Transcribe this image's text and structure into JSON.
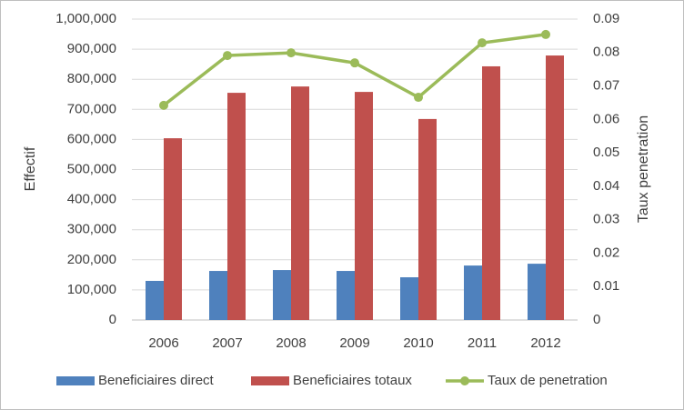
{
  "chart_data": {
    "type": "bar",
    "categories": [
      "2006",
      "2007",
      "2008",
      "2009",
      "2010",
      "2011",
      "2012"
    ],
    "series": [
      {
        "name": "Beneficiaires direct",
        "color": "#4f81bd",
        "values": [
          130000,
          163000,
          166000,
          163000,
          142000,
          181000,
          187000
        ]
      },
      {
        "name": "Beneficiaires totaux",
        "color": "#c0504d",
        "values": [
          604000,
          755000,
          776000,
          758000,
          668000,
          843000,
          879000
        ]
      },
      {
        "name": "Taux de penetration",
        "color": "#9bbb59",
        "type": "line",
        "axis": "y2",
        "values": [
          0.0642,
          0.0791,
          0.0799,
          0.0769,
          0.0666,
          0.0829,
          0.0854
        ]
      }
    ],
    "ylabel": "Effectif",
    "y2label": "Taux penetration",
    "ylim": [
      0,
      1000000
    ],
    "yticks": [
      0,
      {
        "value": 100000,
        "label": "100,000"
      },
      {
        "value": 200000,
        "label": "200,000"
      },
      {
        "value": 300000,
        "label": "300,000"
      },
      {
        "value": 400000,
        "label": "400,000"
      },
      {
        "value": 500000,
        "label": "500,000"
      },
      {
        "value": 600000,
        "label": "600,000"
      },
      {
        "value": 700000,
        "label": "700,000"
      },
      {
        "value": 800000,
        "label": "800,000"
      },
      {
        "value": 900000,
        "label": "900,000"
      },
      {
        "value": 1000000,
        "label": "1,000,000"
      }
    ],
    "y2lim": [
      0,
      0.09
    ],
    "y2ticks": [
      0,
      0.01,
      0.02,
      0.03,
      0.04,
      0.05,
      0.06,
      0.07,
      0.08,
      0.09
    ],
    "grid": true,
    "legend": "bottom"
  }
}
